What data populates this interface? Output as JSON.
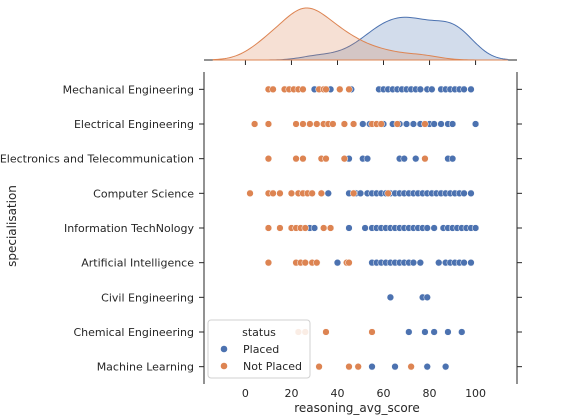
{
  "chart_data": {
    "type": "scatter",
    "title": "",
    "xlabel": "reasoning_avg_score",
    "ylabel": "specialisation",
    "xlim": [
      -18,
      118
    ],
    "xticks": [
      0,
      20,
      40,
      60,
      80,
      100
    ],
    "categories": [
      "Mechanical Engineering",
      "Electrical Engineering",
      "Electronics and Telecommunication",
      "Computer Science",
      "Information TechNology",
      "Artificial Intelligence",
      "Civil Engineering",
      "Chemical Engineering",
      "Machine Learning"
    ],
    "legend": {
      "title": "status",
      "placement": "lower-left"
    },
    "series": [
      {
        "name": "Placed",
        "color": "#4c72b0",
        "points": [
          {
            "cat": 0,
            "x": 30
          },
          {
            "cat": 0,
            "x": 37
          },
          {
            "cat": 0,
            "x": 46
          },
          {
            "cat": 0,
            "x": 58
          },
          {
            "cat": 0,
            "x": 60
          },
          {
            "cat": 0,
            "x": 62
          },
          {
            "cat": 0,
            "x": 64
          },
          {
            "cat": 0,
            "x": 66
          },
          {
            "cat": 0,
            "x": 68
          },
          {
            "cat": 0,
            "x": 70
          },
          {
            "cat": 0,
            "x": 72
          },
          {
            "cat": 0,
            "x": 74
          },
          {
            "cat": 0,
            "x": 76
          },
          {
            "cat": 0,
            "x": 79
          },
          {
            "cat": 0,
            "x": 81
          },
          {
            "cat": 0,
            "x": 85
          },
          {
            "cat": 0,
            "x": 87
          },
          {
            "cat": 0,
            "x": 89
          },
          {
            "cat": 0,
            "x": 91
          },
          {
            "cat": 0,
            "x": 93
          },
          {
            "cat": 0,
            "x": 95
          },
          {
            "cat": 0,
            "x": 98
          },
          {
            "cat": 1,
            "x": 51
          },
          {
            "cat": 1,
            "x": 54
          },
          {
            "cat": 1,
            "x": 57
          },
          {
            "cat": 1,
            "x": 60
          },
          {
            "cat": 1,
            "x": 64
          },
          {
            "cat": 1,
            "x": 67
          },
          {
            "cat": 1,
            "x": 70
          },
          {
            "cat": 1,
            "x": 73
          },
          {
            "cat": 1,
            "x": 76
          },
          {
            "cat": 1,
            "x": 80
          },
          {
            "cat": 1,
            "x": 82
          },
          {
            "cat": 1,
            "x": 85
          },
          {
            "cat": 1,
            "x": 88
          },
          {
            "cat": 1,
            "x": 90
          },
          {
            "cat": 1,
            "x": 100
          },
          {
            "cat": 2,
            "x": 45
          },
          {
            "cat": 2,
            "x": 51
          },
          {
            "cat": 2,
            "x": 53
          },
          {
            "cat": 2,
            "x": 67
          },
          {
            "cat": 2,
            "x": 69
          },
          {
            "cat": 2,
            "x": 74
          },
          {
            "cat": 2,
            "x": 88
          },
          {
            "cat": 2,
            "x": 90
          },
          {
            "cat": 3,
            "x": 36
          },
          {
            "cat": 3,
            "x": 45
          },
          {
            "cat": 3,
            "x": 48
          },
          {
            "cat": 3,
            "x": 50
          },
          {
            "cat": 3,
            "x": 53
          },
          {
            "cat": 3,
            "x": 55
          },
          {
            "cat": 3,
            "x": 57
          },
          {
            "cat": 3,
            "x": 59
          },
          {
            "cat": 3,
            "x": 61
          },
          {
            "cat": 3,
            "x": 63
          },
          {
            "cat": 3,
            "x": 65
          },
          {
            "cat": 3,
            "x": 67
          },
          {
            "cat": 3,
            "x": 69
          },
          {
            "cat": 3,
            "x": 71
          },
          {
            "cat": 3,
            "x": 73
          },
          {
            "cat": 3,
            "x": 75
          },
          {
            "cat": 3,
            "x": 77
          },
          {
            "cat": 3,
            "x": 79
          },
          {
            "cat": 3,
            "x": 81
          },
          {
            "cat": 3,
            "x": 83
          },
          {
            "cat": 3,
            "x": 85
          },
          {
            "cat": 3,
            "x": 87
          },
          {
            "cat": 3,
            "x": 89
          },
          {
            "cat": 3,
            "x": 91
          },
          {
            "cat": 3,
            "x": 93
          },
          {
            "cat": 3,
            "x": 95
          },
          {
            "cat": 3,
            "x": 98
          },
          {
            "cat": 4,
            "x": 28
          },
          {
            "cat": 4,
            "x": 30
          },
          {
            "cat": 4,
            "x": 45
          },
          {
            "cat": 4,
            "x": 52
          },
          {
            "cat": 4,
            "x": 55
          },
          {
            "cat": 4,
            "x": 57
          },
          {
            "cat": 4,
            "x": 59
          },
          {
            "cat": 4,
            "x": 61
          },
          {
            "cat": 4,
            "x": 63
          },
          {
            "cat": 4,
            "x": 65
          },
          {
            "cat": 4,
            "x": 67
          },
          {
            "cat": 4,
            "x": 69
          },
          {
            "cat": 4,
            "x": 71
          },
          {
            "cat": 4,
            "x": 73
          },
          {
            "cat": 4,
            "x": 75
          },
          {
            "cat": 4,
            "x": 77
          },
          {
            "cat": 4,
            "x": 79
          },
          {
            "cat": 4,
            "x": 82
          },
          {
            "cat": 4,
            "x": 86
          },
          {
            "cat": 4,
            "x": 88
          },
          {
            "cat": 4,
            "x": 90
          },
          {
            "cat": 4,
            "x": 92
          },
          {
            "cat": 4,
            "x": 94
          },
          {
            "cat": 4,
            "x": 96
          },
          {
            "cat": 4,
            "x": 98
          },
          {
            "cat": 4,
            "x": 100
          },
          {
            "cat": 5,
            "x": 40
          },
          {
            "cat": 5,
            "x": 55
          },
          {
            "cat": 5,
            "x": 57
          },
          {
            "cat": 5,
            "x": 59
          },
          {
            "cat": 5,
            "x": 61
          },
          {
            "cat": 5,
            "x": 63
          },
          {
            "cat": 5,
            "x": 65
          },
          {
            "cat": 5,
            "x": 67
          },
          {
            "cat": 5,
            "x": 69
          },
          {
            "cat": 5,
            "x": 71
          },
          {
            "cat": 5,
            "x": 73
          },
          {
            "cat": 5,
            "x": 76
          },
          {
            "cat": 5,
            "x": 84
          },
          {
            "cat": 5,
            "x": 87
          },
          {
            "cat": 5,
            "x": 89
          },
          {
            "cat": 5,
            "x": 91
          },
          {
            "cat": 5,
            "x": 93
          },
          {
            "cat": 5,
            "x": 95
          },
          {
            "cat": 5,
            "x": 98
          },
          {
            "cat": 6,
            "x": 63
          },
          {
            "cat": 6,
            "x": 77
          },
          {
            "cat": 6,
            "x": 79
          },
          {
            "cat": 7,
            "x": 71
          },
          {
            "cat": 7,
            "x": 78
          },
          {
            "cat": 7,
            "x": 82
          },
          {
            "cat": 7,
            "x": 88
          },
          {
            "cat": 7,
            "x": 94
          },
          {
            "cat": 8,
            "x": 55
          },
          {
            "cat": 8,
            "x": 65
          },
          {
            "cat": 8,
            "x": 79
          },
          {
            "cat": 8,
            "x": 87
          }
        ]
      },
      {
        "name": "Not Placed",
        "color": "#dd8452",
        "points": [
          {
            "cat": 0,
            "x": 10
          },
          {
            "cat": 0,
            "x": 12
          },
          {
            "cat": 0,
            "x": 17
          },
          {
            "cat": 0,
            "x": 19
          },
          {
            "cat": 0,
            "x": 21
          },
          {
            "cat": 0,
            "x": 23
          },
          {
            "cat": 0,
            "x": 25
          },
          {
            "cat": 0,
            "x": 32
          },
          {
            "cat": 0,
            "x": 34
          },
          {
            "cat": 0,
            "x": 35
          },
          {
            "cat": 0,
            "x": 41
          },
          {
            "cat": 0,
            "x": 45
          },
          {
            "cat": 1,
            "x": 4
          },
          {
            "cat": 1,
            "x": 10
          },
          {
            "cat": 1,
            "x": 22
          },
          {
            "cat": 1,
            "x": 25
          },
          {
            "cat": 1,
            "x": 28
          },
          {
            "cat": 1,
            "x": 31
          },
          {
            "cat": 1,
            "x": 34
          },
          {
            "cat": 1,
            "x": 36
          },
          {
            "cat": 1,
            "x": 38
          },
          {
            "cat": 1,
            "x": 43
          },
          {
            "cat": 1,
            "x": 47
          },
          {
            "cat": 1,
            "x": 55
          },
          {
            "cat": 1,
            "x": 57
          },
          {
            "cat": 1,
            "x": 59
          },
          {
            "cat": 1,
            "x": 66
          },
          {
            "cat": 1,
            "x": 78
          },
          {
            "cat": 2,
            "x": 10
          },
          {
            "cat": 2,
            "x": 22
          },
          {
            "cat": 2,
            "x": 25
          },
          {
            "cat": 2,
            "x": 33
          },
          {
            "cat": 2,
            "x": 35
          },
          {
            "cat": 2,
            "x": 43
          },
          {
            "cat": 2,
            "x": 78
          },
          {
            "cat": 3,
            "x": 2
          },
          {
            "cat": 3,
            "x": 10
          },
          {
            "cat": 3,
            "x": 12
          },
          {
            "cat": 3,
            "x": 15
          },
          {
            "cat": 3,
            "x": 20
          },
          {
            "cat": 3,
            "x": 23
          },
          {
            "cat": 3,
            "x": 25
          },
          {
            "cat": 3,
            "x": 27
          },
          {
            "cat": 3,
            "x": 29
          },
          {
            "cat": 3,
            "x": 33
          },
          {
            "cat": 3,
            "x": 47
          },
          {
            "cat": 3,
            "x": 62
          },
          {
            "cat": 4,
            "x": 10
          },
          {
            "cat": 4,
            "x": 15
          },
          {
            "cat": 4,
            "x": 20
          },
          {
            "cat": 4,
            "x": 22
          },
          {
            "cat": 4,
            "x": 24
          },
          {
            "cat": 4,
            "x": 26
          },
          {
            "cat": 4,
            "x": 34
          },
          {
            "cat": 4,
            "x": 37
          },
          {
            "cat": 5,
            "x": 10
          },
          {
            "cat": 5,
            "x": 22
          },
          {
            "cat": 5,
            "x": 24
          },
          {
            "cat": 5,
            "x": 26
          },
          {
            "cat": 5,
            "x": 29
          },
          {
            "cat": 5,
            "x": 31
          },
          {
            "cat": 5,
            "x": 44
          },
          {
            "cat": 5,
            "x": 45
          },
          {
            "cat": 7,
            "x": 23
          },
          {
            "cat": 7,
            "x": 26
          },
          {
            "cat": 7,
            "x": 35
          },
          {
            "cat": 7,
            "x": 55
          },
          {
            "cat": 8,
            "x": 32
          },
          {
            "cat": 8,
            "x": 45
          },
          {
            "cat": 8,
            "x": 49
          },
          {
            "cat": 8,
            "x": 72
          }
        ]
      }
    ]
  }
}
